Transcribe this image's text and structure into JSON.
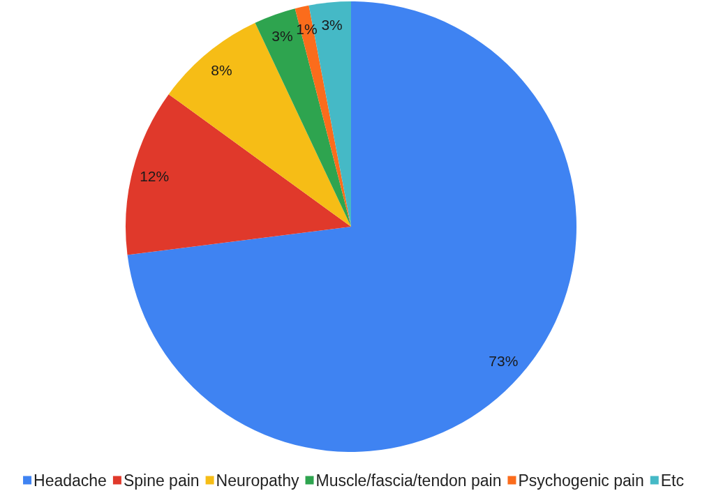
{
  "chart_data": {
    "type": "pie",
    "categories": [
      "Headache",
      "Spine pain",
      "Neuropathy",
      "Muscle/fascia/tendon pain",
      "Psychogenic pain",
      "Etc"
    ],
    "values": [
      73,
      12,
      8,
      3,
      1,
      3
    ],
    "colors": [
      "#3f83f2",
      "#e0392b",
      "#f6bd16",
      "#2ea44f",
      "#fb6c1c",
      "#45b9c6"
    ],
    "value_labels": [
      "73%",
      "12%",
      "8%",
      "3%",
      "1%",
      "3%"
    ],
    "legend": "bottom"
  }
}
